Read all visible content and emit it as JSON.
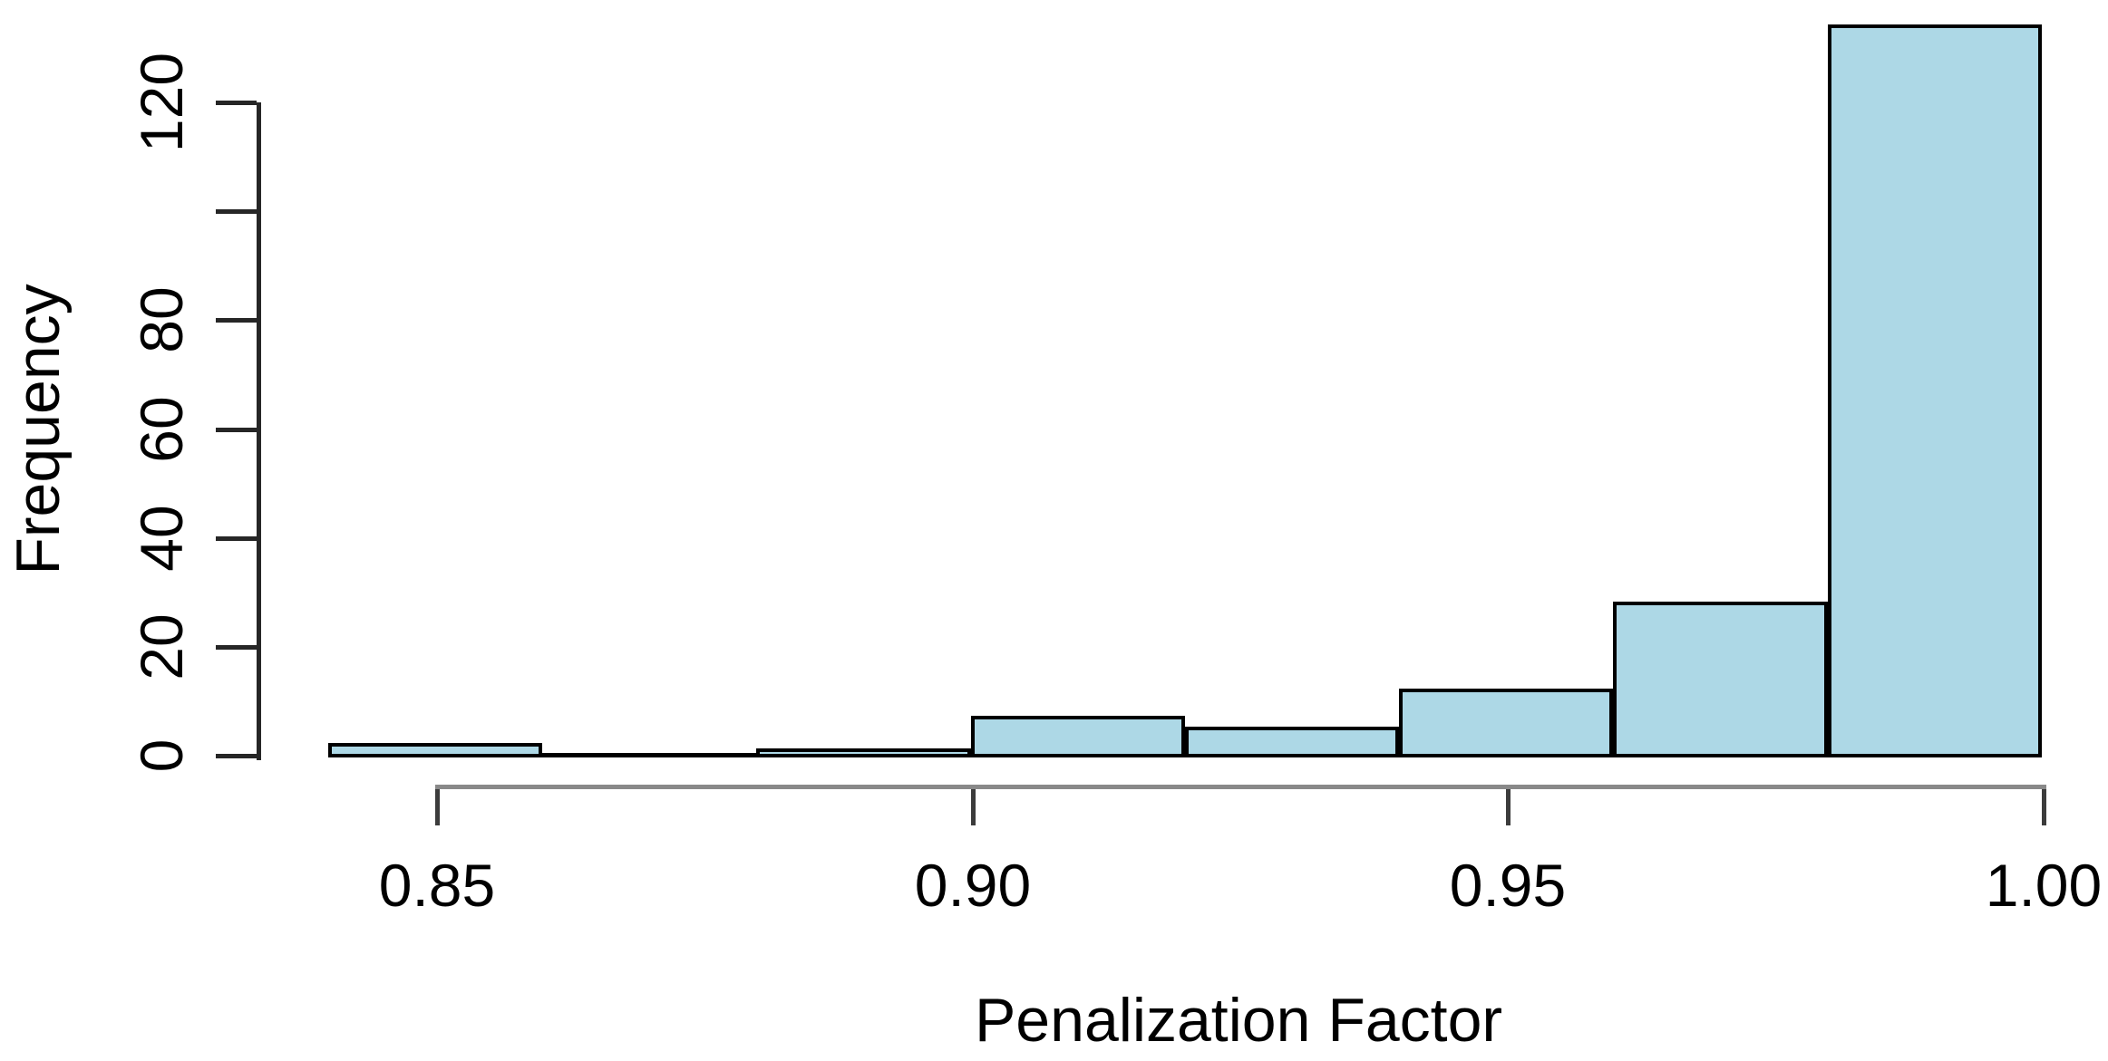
{
  "chart_data": {
    "type": "bar",
    "subtype": "histogram",
    "title": "",
    "xlabel": "Penalization Factor",
    "ylabel": "Frequency",
    "bin_edges": [
      0.84,
      0.86,
      0.88,
      0.9,
      0.92,
      0.94,
      0.96,
      0.98,
      1.0
    ],
    "counts": [
      2,
      0,
      1,
      7,
      5,
      12,
      28,
      134
    ],
    "x_ticks": [
      0.85,
      0.9,
      0.95,
      1.0
    ],
    "x_tick_labels": [
      "0.85",
      "0.90",
      "0.95",
      "1.00"
    ],
    "y_ticks": [
      0,
      20,
      40,
      60,
      80,
      100,
      120
    ],
    "y_tick_labels": [
      "0",
      "20",
      "40",
      "60",
      "80",
      "",
      "120"
    ],
    "xlim": [
      0.84,
      1.0
    ],
    "ylim": [
      0,
      120
    ],
    "grid": "off",
    "legend": "none",
    "bar_fill_color": "#ADD8E6",
    "bar_border_color": "#000000",
    "x_axis_color": "#898989",
    "y_axis_color": "#262626",
    "text_color": "#000000"
  }
}
